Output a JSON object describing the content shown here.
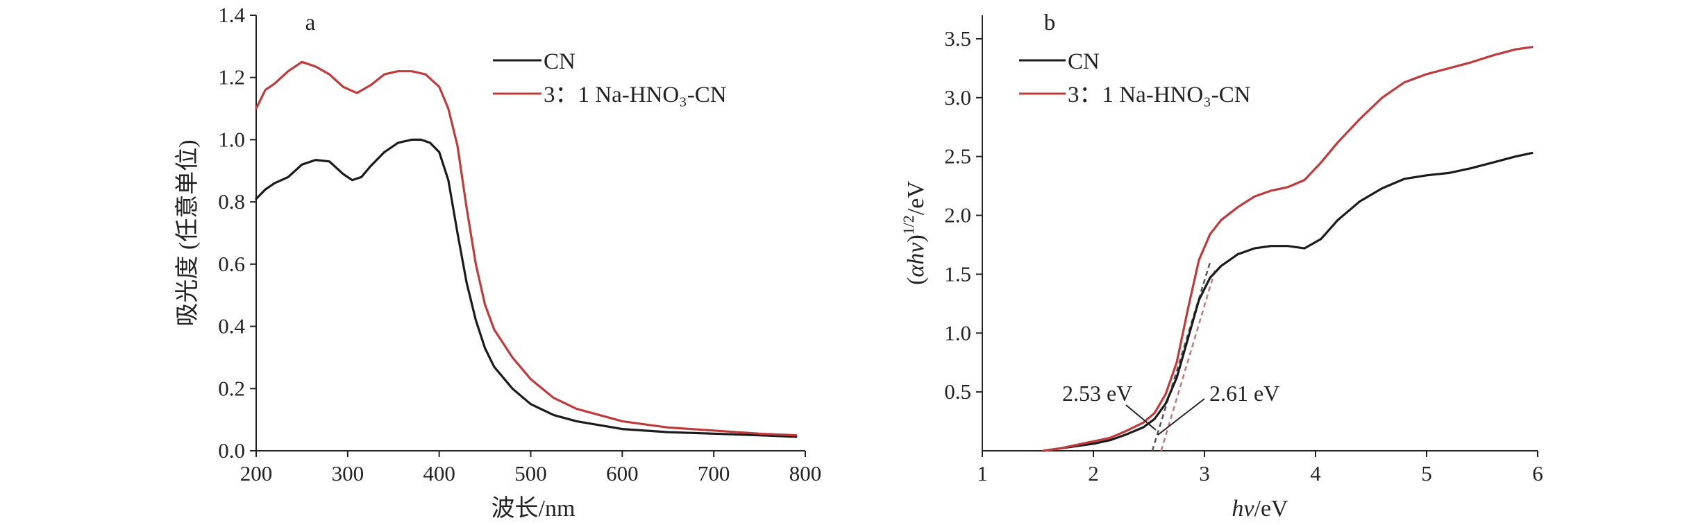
{
  "chart_data": [
    {
      "type": "line",
      "panel_label": "a",
      "xlabel": "波长/nm",
      "ylabel": "吸光度 (任意单位)",
      "xlim": [
        200,
        800
      ],
      "ylim": [
        0,
        1.4
      ],
      "x_ticks": [
        "200",
        "300",
        "400",
        "500",
        "600",
        "700",
        "800"
      ],
      "y_ticks": [
        "0.0",
        "0.2",
        "0.4",
        "0.6",
        "0.8",
        "1.0",
        "1.2",
        "1.4"
      ],
      "legend_position": "top-right",
      "grid": false,
      "series": [
        {
          "name": "CN",
          "color": "#1a1a1a",
          "x": [
            200,
            210,
            220,
            235,
            250,
            265,
            280,
            295,
            305,
            315,
            325,
            340,
            355,
            370,
            380,
            390,
            400,
            410,
            420,
            430,
            440,
            450,
            460,
            480,
            500,
            525,
            550,
            600,
            650,
            700,
            750,
            790
          ],
          "y": [
            0.81,
            0.84,
            0.86,
            0.88,
            0.92,
            0.935,
            0.93,
            0.89,
            0.87,
            0.88,
            0.915,
            0.96,
            0.99,
            1.0,
            1.0,
            0.99,
            0.96,
            0.87,
            0.7,
            0.54,
            0.42,
            0.33,
            0.27,
            0.2,
            0.15,
            0.115,
            0.095,
            0.07,
            0.06,
            0.055,
            0.05,
            0.045
          ]
        },
        {
          "name": "3：1 Na-HNO₃-CN",
          "color": "#c0393b",
          "x": [
            200,
            210,
            220,
            235,
            250,
            265,
            280,
            295,
            310,
            325,
            340,
            355,
            370,
            385,
            400,
            410,
            420,
            430,
            440,
            450,
            460,
            480,
            500,
            525,
            550,
            600,
            650,
            700,
            750,
            790
          ],
          "y": [
            1.1,
            1.16,
            1.18,
            1.22,
            1.25,
            1.235,
            1.21,
            1.17,
            1.15,
            1.175,
            1.21,
            1.22,
            1.22,
            1.21,
            1.17,
            1.1,
            0.98,
            0.78,
            0.6,
            0.47,
            0.39,
            0.3,
            0.23,
            0.17,
            0.135,
            0.095,
            0.075,
            0.065,
            0.055,
            0.05
          ]
        }
      ]
    },
    {
      "type": "line",
      "panel_label": "b",
      "xlabel": "hν/eV",
      "ylabel": "(αhν)^1/2/eV",
      "xlim": [
        1,
        6
      ],
      "ylim": [
        0,
        3.7
      ],
      "x_ticks": [
        "1",
        "2",
        "3",
        "4",
        "5",
        "6"
      ],
      "y_ticks": [
        "0.5",
        "1.0",
        "1.5",
        "2.0",
        "2.5",
        "3.0",
        "3.5"
      ],
      "legend_position": "top-left",
      "grid": false,
      "series": [
        {
          "name": "CN",
          "color": "#1a1a1a",
          "x": [
            1.55,
            1.7,
            1.85,
            2.0,
            2.15,
            2.3,
            2.45,
            2.55,
            2.65,
            2.75,
            2.85,
            2.95,
            3.05,
            3.15,
            3.3,
            3.45,
            3.6,
            3.75,
            3.9,
            4.05,
            4.2,
            4.4,
            4.6,
            4.8,
            5.0,
            5.2,
            5.4,
            5.6,
            5.8,
            5.95
          ],
          "y": [
            0.0,
            0.02,
            0.04,
            0.06,
            0.09,
            0.14,
            0.2,
            0.27,
            0.4,
            0.62,
            0.95,
            1.28,
            1.47,
            1.57,
            1.67,
            1.72,
            1.74,
            1.74,
            1.72,
            1.8,
            1.96,
            2.12,
            2.23,
            2.31,
            2.34,
            2.36,
            2.4,
            2.45,
            2.5,
            2.53
          ]
        },
        {
          "name": "3：1 Na-HNO₃-CN",
          "color": "#c0393b",
          "x": [
            1.55,
            1.7,
            1.85,
            2.0,
            2.15,
            2.3,
            2.45,
            2.55,
            2.65,
            2.75,
            2.85,
            2.95,
            3.05,
            3.15,
            3.3,
            3.45,
            3.6,
            3.75,
            3.9,
            4.05,
            4.2,
            4.4,
            4.6,
            4.8,
            5.0,
            5.2,
            5.4,
            5.6,
            5.8,
            5.95
          ],
          "y": [
            0.0,
            0.02,
            0.05,
            0.08,
            0.11,
            0.17,
            0.24,
            0.32,
            0.48,
            0.75,
            1.2,
            1.62,
            1.84,
            1.96,
            2.07,
            2.16,
            2.21,
            2.24,
            2.3,
            2.45,
            2.62,
            2.82,
            3.0,
            3.13,
            3.2,
            3.25,
            3.3,
            3.36,
            3.41,
            3.43
          ]
        }
      ],
      "tangents": [
        {
          "color": "#555555",
          "x": [
            2.53,
            3.05
          ],
          "y": [
            0.0,
            1.6
          ]
        },
        {
          "color": "#c07a7a",
          "x": [
            2.61,
            3.1
          ],
          "y": [
            0.0,
            1.55
          ]
        }
      ],
      "annotations": [
        {
          "text": "2.53 eV",
          "x": 2.53
        },
        {
          "text": "2.61 eV",
          "x": 2.61
        }
      ]
    }
  ]
}
